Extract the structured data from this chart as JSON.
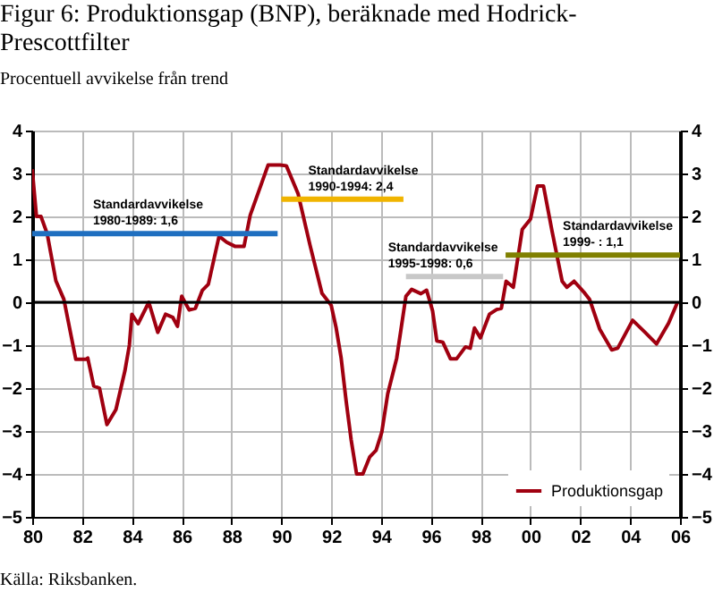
{
  "chart_data": {
    "type": "line",
    "title": "Figur 6: Produktionsgap (BNP), beräknade med Hodrick-\nPrescottfilter",
    "ylabel": "Procentuell avvikelse från trend",
    "x": [
      1980.0,
      1980.17,
      1980.35,
      1980.6,
      1980.95,
      1981.27,
      1981.75,
      1982.15,
      1982.23,
      1982.47,
      1982.7,
      1983.0,
      1983.36,
      1983.72,
      1983.9,
      1984.0,
      1984.25,
      1984.68,
      1985.04,
      1985.35,
      1985.64,
      1985.83,
      1986.0,
      1986.3,
      1986.55,
      1986.83,
      1987.07,
      1987.5,
      1987.8,
      1988.15,
      1988.5,
      1988.75,
      1989.47,
      1989.95,
      1990.2,
      1990.67,
      1991.15,
      1991.63,
      1992.0,
      1992.2,
      1992.4,
      1992.6,
      1992.8,
      1993.02,
      1993.27,
      1993.55,
      1993.8,
      1994.03,
      1994.27,
      1994.63,
      1995.0,
      1995.23,
      1995.6,
      1995.83,
      1996.07,
      1996.24,
      1996.48,
      1996.79,
      1997.03,
      1997.39,
      1997.58,
      1997.75,
      1997.99,
      1998.35,
      1998.64,
      1998.83,
      1999.02,
      1999.31,
      1999.67,
      2000.0,
      2000.28,
      2000.52,
      2000.86,
      2001.27,
      2001.46,
      2001.75,
      2002.18,
      2002.37,
      2002.78,
      2003.26,
      2003.5,
      2004.1,
      2004.58,
      2005.06,
      2005.54,
      2005.9
    ],
    "series": [
      {
        "name": "Produktionsgap",
        "color": "#a00010",
        "values": [
          3.1,
          2.0,
          2.0,
          1.6,
          0.5,
          0.07,
          -1.33,
          -1.33,
          -1.3,
          -1.95,
          -2.0,
          -2.85,
          -2.5,
          -1.6,
          -1.0,
          -0.28,
          -0.5,
          0.0,
          -0.7,
          -0.28,
          -0.35,
          -0.56,
          0.14,
          -0.18,
          -0.14,
          0.28,
          0.42,
          1.54,
          1.4,
          1.3,
          1.3,
          2.03,
          3.2,
          3.2,
          3.18,
          2.53,
          1.33,
          0.21,
          -0.07,
          -0.6,
          -1.3,
          -2.3,
          -3.2,
          -4.0,
          -4.0,
          -3.6,
          -3.45,
          -3.03,
          -2.13,
          -1.3,
          0.14,
          0.3,
          0.2,
          0.28,
          -0.2,
          -0.9,
          -0.93,
          -1.32,
          -1.32,
          -1.04,
          -1.07,
          -0.6,
          -0.83,
          -0.28,
          -0.17,
          -0.14,
          0.49,
          0.35,
          1.7,
          1.94,
          2.71,
          2.71,
          1.67,
          0.49,
          0.35,
          0.49,
          0.21,
          0.07,
          -0.63,
          -1.11,
          -1.07,
          -0.42,
          -0.69,
          -0.97,
          -0.49,
          0.0
        ]
      },
      {
        "type": "line",
        "color": "#1f6fc0",
        "x": [
          1980.0,
          1989.85
        ],
        "values": [
          1.6,
          1.6
        ]
      },
      {
        "type": "line",
        "color": "#f0b400",
        "x": [
          1990.0,
          1994.9
        ],
        "values": [
          2.4,
          2.4
        ]
      },
      {
        "type": "line",
        "color": "#c8c8c8",
        "x": [
          1995.0,
          1998.9
        ],
        "values": [
          0.6,
          0.6
        ]
      },
      {
        "type": "line",
        "color": "#808000",
        "x": [
          1999.0,
          2006.0
        ],
        "values": [
          1.1,
          1.1
        ]
      }
    ],
    "xlim": [
      1980,
      2006
    ],
    "xticks": [
      {
        "value": 1980,
        "label": "80"
      },
      {
        "value": 1982,
        "label": "82"
      },
      {
        "value": 1984,
        "label": "84"
      },
      {
        "value": 1986,
        "label": "86"
      },
      {
        "value": 1988,
        "label": "88"
      },
      {
        "value": 1990,
        "label": "90"
      },
      {
        "value": 1992,
        "label": "92"
      },
      {
        "value": 1994,
        "label": "94"
      },
      {
        "value": 1996,
        "label": "96"
      },
      {
        "value": 1998,
        "label": "98"
      },
      {
        "value": 2000,
        "label": "00"
      },
      {
        "value": 2002,
        "label": "02"
      },
      {
        "value": 2004,
        "label": "04"
      },
      {
        "value": 2006,
        "label": "06"
      }
    ],
    "ylim": [
      -5,
      4
    ],
    "yticks": [
      -5,
      -4,
      -3,
      -2,
      -1,
      0,
      1,
      2,
      3,
      4
    ],
    "y2lim": [
      -5,
      4
    ],
    "y2ticks": [
      -5,
      -4,
      -3,
      -2,
      -1,
      0,
      1,
      2,
      3,
      4
    ],
    "annotations": [
      "Standardavvikelse\n1980-1989: 1,6",
      "Standardavvikelse\n1990-1994: 2,4",
      "Standardavvikelse\n1995-1998: 0,6",
      "Standardavvikelse\n1999- : 1,1",
      "Källa: Riksbanken."
    ],
    "grid": true,
    "legend": "bottom right",
    "line_style": "solid",
    "marker": "none"
  }
}
